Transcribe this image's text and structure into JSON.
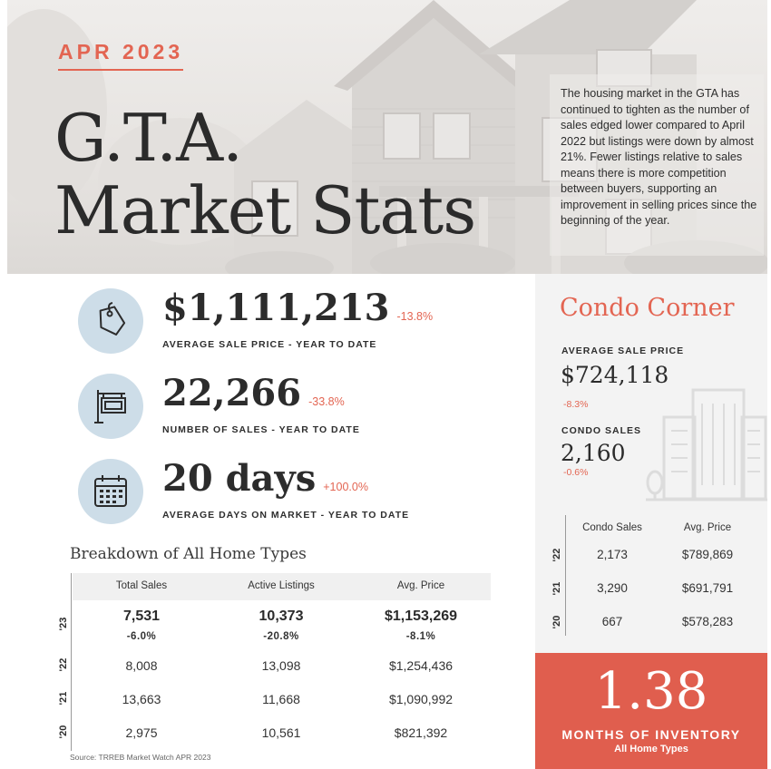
{
  "header": {
    "month": "APR 2023",
    "title_line1": "G.T.A.",
    "title_line2": "Market Stats",
    "intro": "The housing market in the GTA has continued to tighten as the number of sales edged lower compared to April 2022 but listings were down by almost 21%. Fewer listings relative to sales means there is more competition between buyers, supporting an improvement in selling prices since the beginning of the year."
  },
  "stats": [
    {
      "icon": "price-tag-icon",
      "value": "$1,111,213",
      "change": "-13.8%",
      "label": "AVERAGE SALE PRICE - YEAR TO DATE"
    },
    {
      "icon": "for-sale-sign-icon",
      "value": "22,266",
      "change": "-33.8%",
      "label": "NUMBER OF SALES - YEAR TO DATE"
    },
    {
      "icon": "calendar-icon",
      "value": "20 days",
      "change": "+100.0%",
      "label": "AVERAGE DAYS ON MARKET - YEAR TO DATE"
    }
  ],
  "breakdown": {
    "title": "Breakdown of All Home Types",
    "columns": [
      "Total Sales",
      "Active Listings",
      "Avg. Price"
    ],
    "rows": [
      {
        "year": "'23",
        "values": [
          "7,531",
          "10,373",
          "$1,153,269"
        ],
        "changes": [
          "-6.0%",
          "-20.8%",
          "-8.1%"
        ]
      },
      {
        "year": "'22",
        "values": [
          "8,008",
          "13,098",
          "$1,254,436"
        ]
      },
      {
        "year": "'21",
        "values": [
          "13,663",
          "11,668",
          "$1,090,992"
        ]
      },
      {
        "year": "'20",
        "values": [
          "2,975",
          "10,561",
          "$821,392"
        ]
      }
    ],
    "source": "Source: TRREB Market Watch APR 2023"
  },
  "condo": {
    "title": "Condo Corner",
    "avg_label": "AVERAGE SALE PRICE",
    "avg_value": "$724,118",
    "avg_change": "-8.3%",
    "sales_label": "CONDO SALES",
    "sales_value": "2,160",
    "sales_change": "-0.6%",
    "columns": [
      "Condo Sales",
      "Avg. Price"
    ],
    "rows": [
      {
        "year": "'22",
        "values": [
          "2,173",
          "$789,869"
        ]
      },
      {
        "year": "'21",
        "values": [
          "3,290",
          "$691,791"
        ]
      },
      {
        "year": "'20",
        "values": [
          "667",
          "$578,283"
        ]
      }
    ]
  },
  "inventory": {
    "value": "1.38",
    "label": "MONTHS OF INVENTORY",
    "sublabel": "All Home Types"
  },
  "colors": {
    "accent": "#e36552",
    "inventory_bg": "#e05e4e",
    "icon_circle": "#cddde8",
    "panel_bg": "#f3f3f3",
    "text": "#2c2c2c"
  }
}
